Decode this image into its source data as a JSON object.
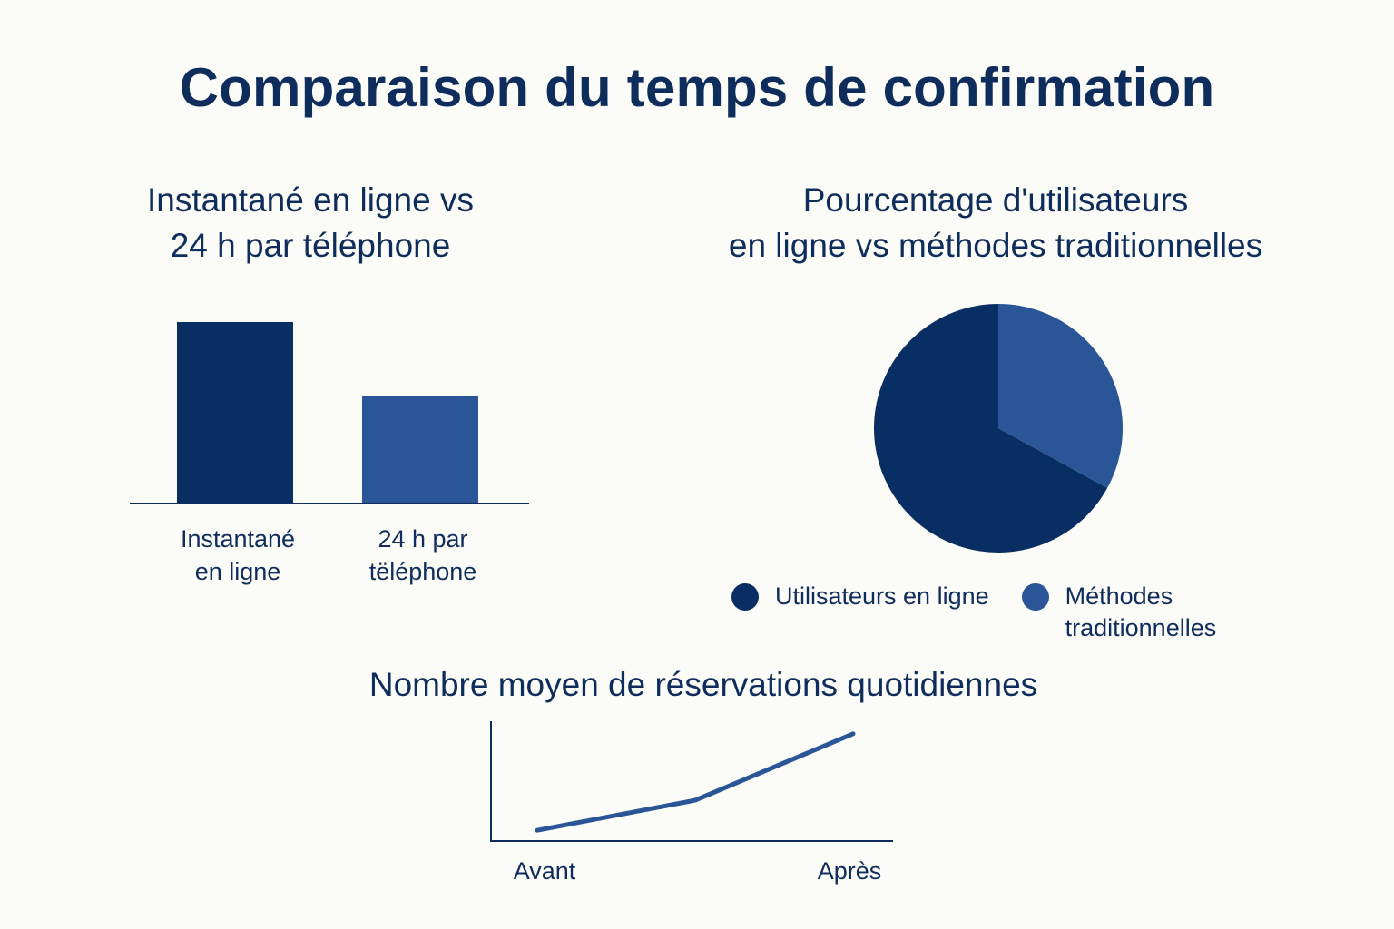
{
  "title": "Comparaison du temps de confirmation",
  "colors": {
    "dark_navy": "#092e63",
    "medium_blue": "#2a5698",
    "text": "#0f2d5c"
  },
  "chart_data": [
    {
      "type": "bar",
      "title_lines": [
        "Instantané en ligne vs",
        "24 h par téléphone"
      ],
      "categories": [
        {
          "lines": [
            "Instantané",
            "en ligne"
          ]
        },
        {
          "lines": [
            "24 h par",
            "tëléphone"
          ]
        }
      ],
      "values": [
        1.0,
        0.59
      ],
      "ylim": [
        0,
        1.2
      ],
      "colors": [
        "#092e63",
        "#2a5698"
      ]
    },
    {
      "type": "pie",
      "title_lines": [
        "Pourcentage d'utilisateurs",
        "en ligne vs méthodes traditionnelles"
      ],
      "slices": [
        {
          "label_lines": [
            "Méthodes",
            "traditionnelles"
          ],
          "value": 33,
          "color": "#2a5698"
        },
        {
          "label_lines": [
            "Utilisateurs en ligne"
          ],
          "value": 67,
          "color": "#092e63"
        }
      ],
      "legend": [
        {
          "label_lines": [
            "Utilisateurs en ligne"
          ],
          "color": "#092e63"
        },
        {
          "label_lines": [
            "Méthodes",
            "traditionnelles"
          ],
          "color": "#2a5698"
        }
      ],
      "legend_position": "bottom"
    },
    {
      "type": "line",
      "title": "Nombre moyen de réservations quotidiennes",
      "x_labels": [
        "Avant",
        "Après"
      ],
      "x": [
        0,
        0.5,
        1
      ],
      "y": [
        0.1,
        0.38,
        1.0
      ],
      "ylim": [
        0,
        1.1
      ],
      "color": "#2a5698"
    }
  ]
}
